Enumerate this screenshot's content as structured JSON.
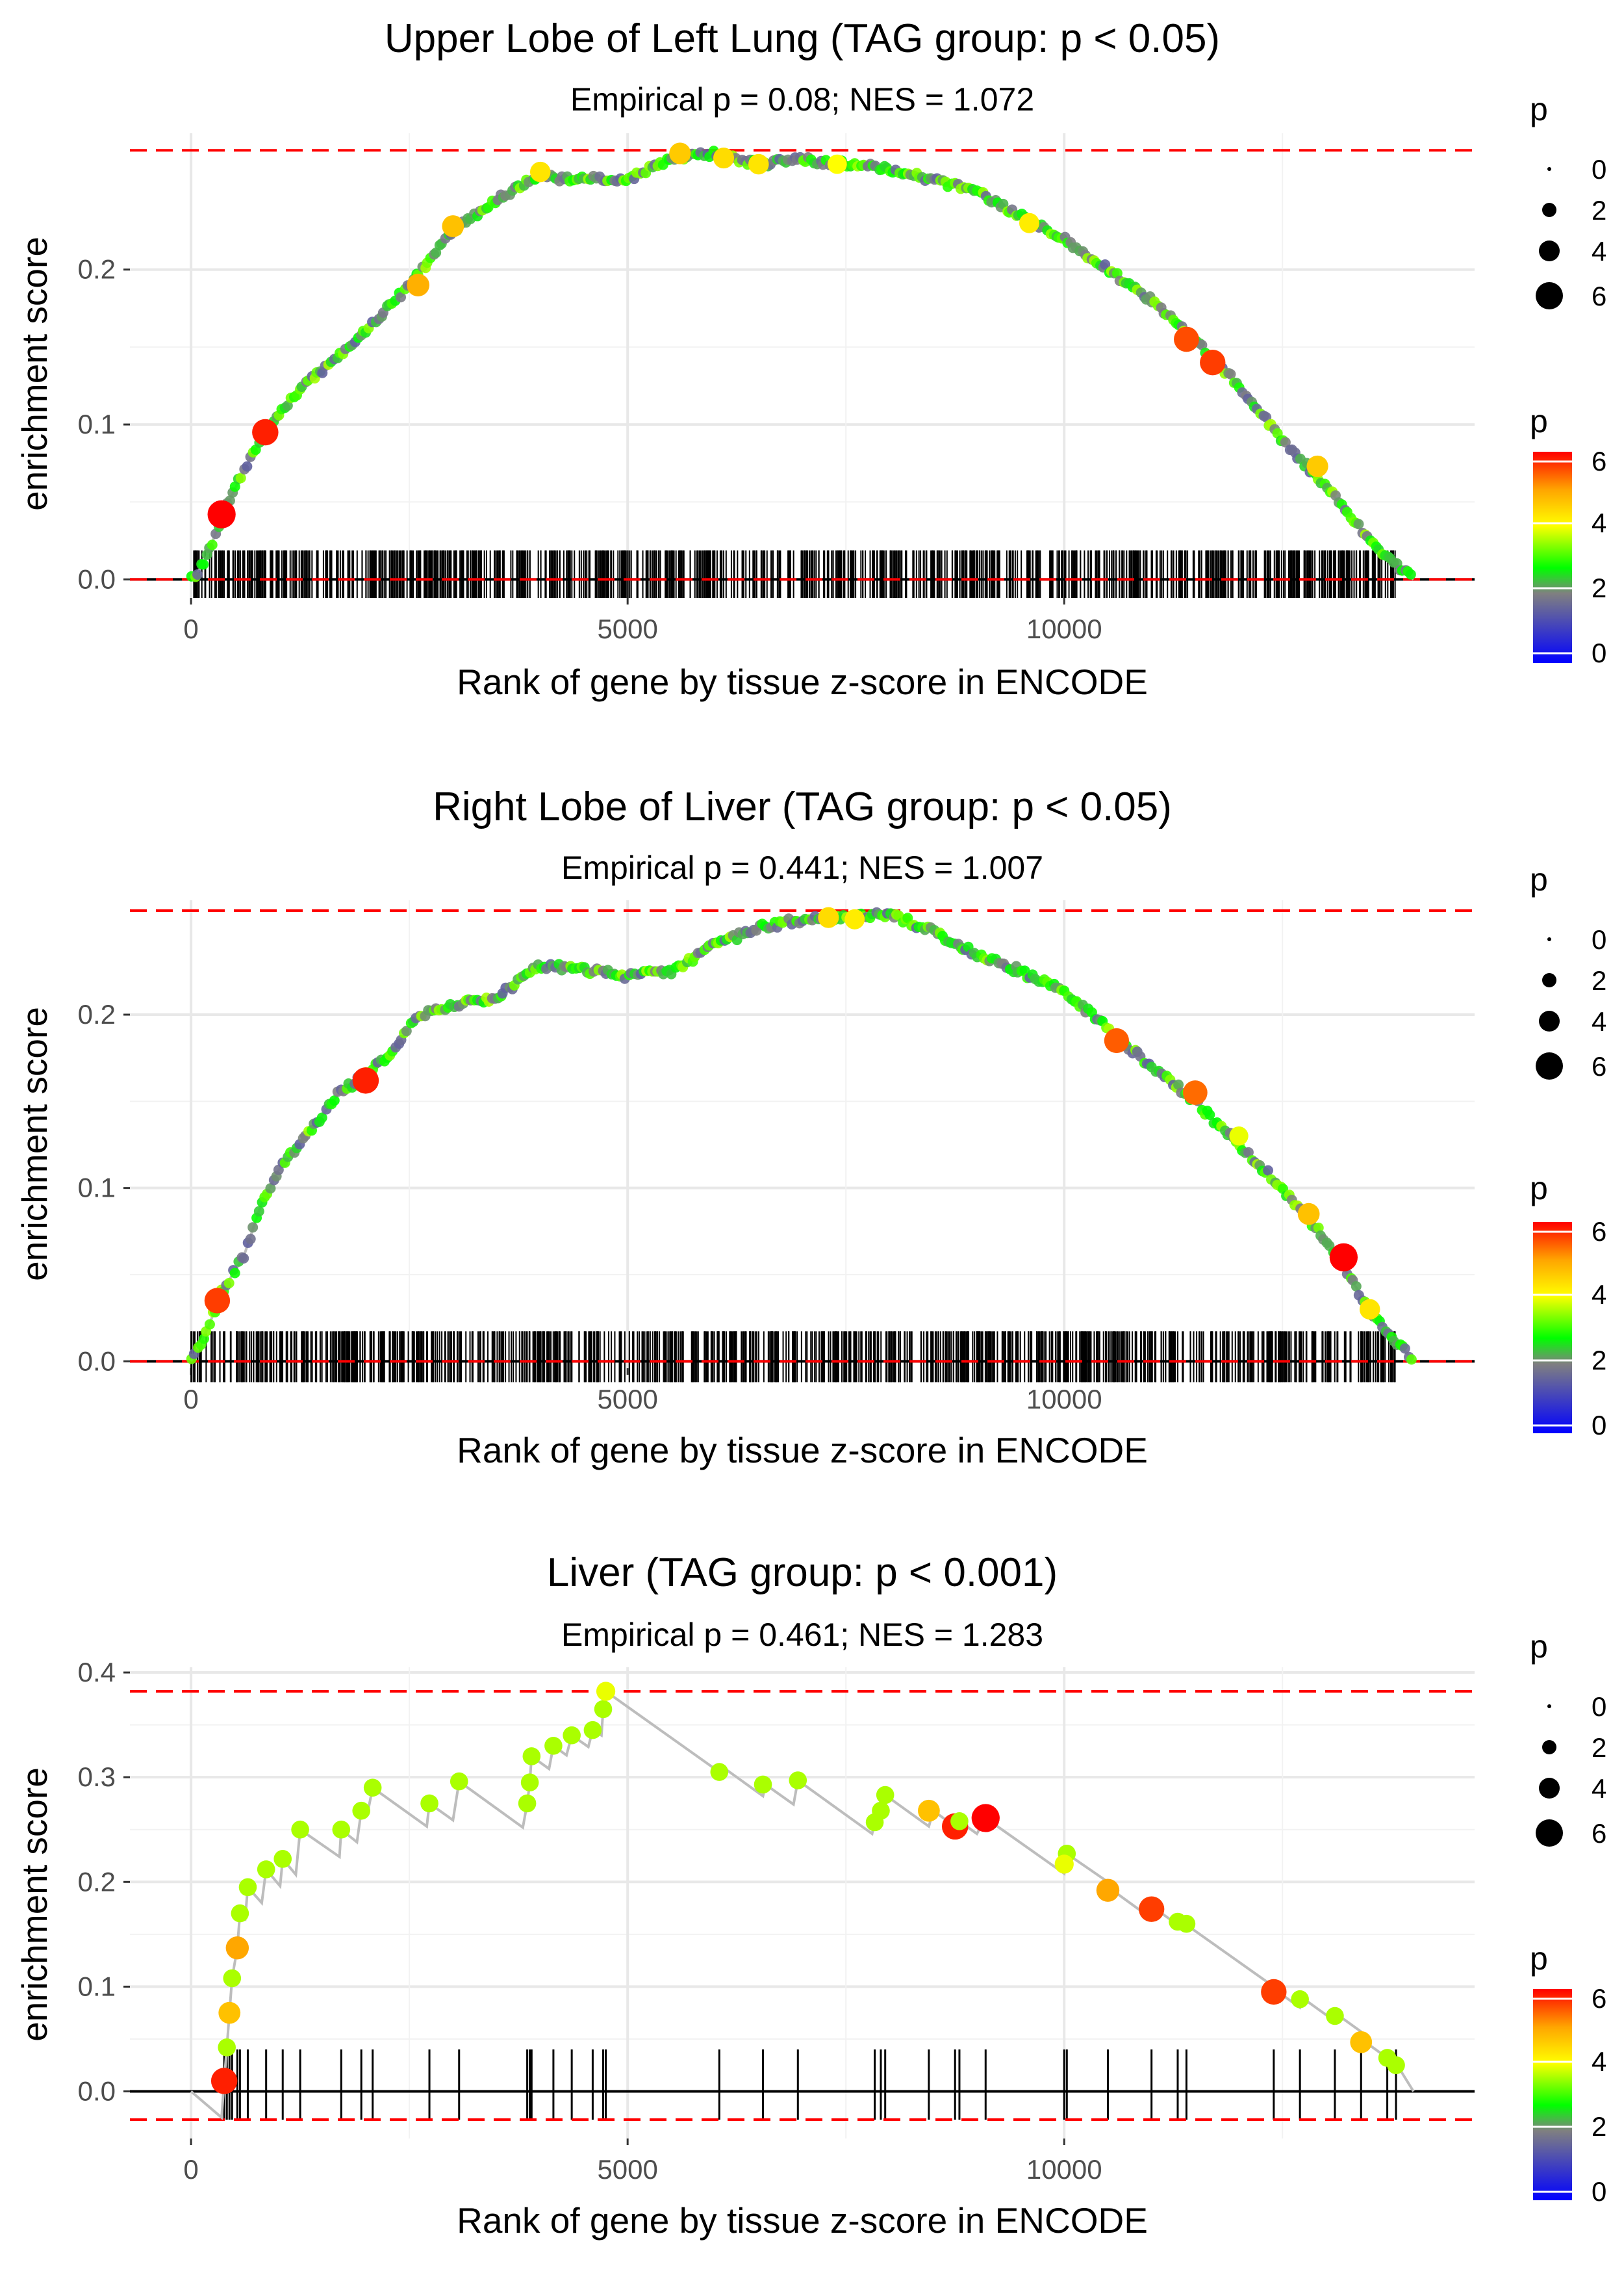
{
  "colors": {
    "dashed": "#ff0000",
    "line": "#bdbdbd",
    "grid": "#e8e8e8",
    "axis_text": "#4d4d4d",
    "gradient": [
      "#0000ff",
      "#808080",
      "#00ff00",
      "#ffff00",
      "#ffa500",
      "#ff0000"
    ]
  },
  "chart_data": [
    {
      "type": "line",
      "title": "Upper Lobe of Left Lung (TAG group: p < 0.05)",
      "subtitle": "Empirical p = 0.08; NES = 1.072",
      "xlabel": "Rank of gene by tissue z-score in ENCODE",
      "ylabel": "enrichment score",
      "xlim": [
        -700,
        14700
      ],
      "ylim": [
        -0.012,
        0.288
      ],
      "x_ticks": [
        0,
        5000,
        10000
      ],
      "x_tick_labels": [
        "0",
        "5000",
        "10000"
      ],
      "y_ticks": [
        0.0,
        0.1,
        0.2
      ],
      "y_tick_labels": [
        "0.0",
        "0.1",
        "0.2"
      ],
      "max_es": 0.277,
      "min_es": 0.0,
      "n_genes": 14000,
      "curve": [
        [
          0,
          0
        ],
        [
          150,
          0.01
        ],
        [
          350,
          0.04
        ],
        [
          600,
          0.07
        ],
        [
          900,
          0.1
        ],
        [
          1200,
          0.12
        ],
        [
          1600,
          0.14
        ],
        [
          2000,
          0.16
        ],
        [
          2500,
          0.19
        ],
        [
          3000,
          0.225
        ],
        [
          3500,
          0.245
        ],
        [
          4000,
          0.262
        ],
        [
          4200,
          0.258
        ],
        [
          4500,
          0.26
        ],
        [
          5000,
          0.258
        ],
        [
          5500,
          0.272
        ],
        [
          6000,
          0.275
        ],
        [
          6500,
          0.268
        ],
        [
          7000,
          0.271
        ],
        [
          7500,
          0.268
        ],
        [
          8000,
          0.265
        ],
        [
          8500,
          0.258
        ],
        [
          9000,
          0.25
        ],
        [
          9500,
          0.235
        ],
        [
          10000,
          0.22
        ],
        [
          10500,
          0.2
        ],
        [
          11000,
          0.18
        ],
        [
          11500,
          0.155
        ],
        [
          12000,
          0.125
        ],
        [
          12500,
          0.09
        ],
        [
          13000,
          0.06
        ],
        [
          13500,
          0.025
        ],
        [
          14000,
          0.0
        ]
      ],
      "highlight_points": [
        [
          350,
          0.042,
          6.3
        ],
        [
          850,
          0.095,
          5.8
        ],
        [
          2600,
          0.19,
          4.8
        ],
        [
          3000,
          0.228,
          4.6
        ],
        [
          4000,
          0.263,
          4.2
        ],
        [
          5600,
          0.275,
          4.5
        ],
        [
          6100,
          0.272,
          4.3
        ],
        [
          6500,
          0.268,
          4.2
        ],
        [
          7400,
          0.268,
          3.9
        ],
        [
          9600,
          0.23,
          4.1
        ],
        [
          11400,
          0.155,
          5.5
        ],
        [
          11700,
          0.14,
          5.6
        ],
        [
          12900,
          0.073,
          4.5
        ]
      ],
      "marker_density": "dense",
      "p_range": [
        0,
        6
      ],
      "legend": {
        "size_title": "p",
        "size_labels": [
          "0",
          "2",
          "4",
          "6"
        ],
        "color_title": "p",
        "color_labels": [
          "6",
          "4",
          "2",
          "0"
        ]
      }
    },
    {
      "type": "line",
      "title": "Right Lobe of Liver (TAG group: p < 0.05)",
      "subtitle": "Empirical p = 0.441; NES = 1.007",
      "xlabel": "Rank of gene by tissue z-score in ENCODE",
      "ylabel": "enrichment score",
      "xlim": [
        -700,
        14700
      ],
      "ylim": [
        -0.004,
        0.266
      ],
      "x_ticks": [
        0,
        5000,
        10000
      ],
      "x_tick_labels": [
        "0",
        "5000",
        "10000"
      ],
      "y_ticks": [
        0.0,
        0.1,
        0.2
      ],
      "y_tick_labels": [
        "0.0",
        "0.1",
        "0.2"
      ],
      "max_es": 0.26,
      "min_es": 0.0,
      "n_genes": 14000,
      "curve": [
        [
          0,
          0
        ],
        [
          200,
          0.02
        ],
        [
          350,
          0.04
        ],
        [
          600,
          0.06
        ],
        [
          800,
          0.09
        ],
        [
          1000,
          0.11
        ],
        [
          1400,
          0.135
        ],
        [
          1700,
          0.155
        ],
        [
          2000,
          0.165
        ],
        [
          2300,
          0.178
        ],
        [
          2600,
          0.2
        ],
        [
          3000,
          0.205
        ],
        [
          3500,
          0.21
        ],
        [
          4000,
          0.228
        ],
        [
          4500,
          0.226
        ],
        [
          5000,
          0.222
        ],
        [
          5500,
          0.225
        ],
        [
          6000,
          0.24
        ],
        [
          6500,
          0.25
        ],
        [
          7000,
          0.255
        ],
        [
          7500,
          0.257
        ],
        [
          8000,
          0.258
        ],
        [
          8500,
          0.248
        ],
        [
          9000,
          0.235
        ],
        [
          9500,
          0.225
        ],
        [
          10000,
          0.213
        ],
        [
          10500,
          0.192
        ],
        [
          11000,
          0.17
        ],
        [
          11500,
          0.15
        ],
        [
          12000,
          0.125
        ],
        [
          12500,
          0.1
        ],
        [
          13000,
          0.07
        ],
        [
          13500,
          0.03
        ],
        [
          14000,
          0.0
        ]
      ],
      "highlight_points": [
        [
          300,
          0.035,
          5.6
        ],
        [
          2000,
          0.162,
          5.8
        ],
        [
          7300,
          0.256,
          4.3
        ],
        [
          7600,
          0.255,
          4.1
        ],
        [
          10600,
          0.185,
          5.4
        ],
        [
          11500,
          0.155,
          5.3
        ],
        [
          12000,
          0.13,
          3.8
        ],
        [
          12800,
          0.085,
          4.6
        ],
        [
          13200,
          0.06,
          6.3
        ],
        [
          13500,
          0.03,
          4.2
        ]
      ],
      "marker_density": "dense",
      "p_range": [
        0,
        6
      ],
      "legend": {
        "size_title": "p",
        "size_labels": [
          "0",
          "2",
          "4",
          "6"
        ],
        "color_title": "p",
        "color_labels": [
          "6",
          "4",
          "2",
          "0"
        ]
      }
    },
    {
      "type": "line",
      "title": "Liver (TAG group: p < 0.001)",
      "subtitle": "Empirical p = 0.461; NES = 1.283",
      "xlabel": "Rank of gene by tissue z-score in ENCODE",
      "ylabel": "enrichment score",
      "xlim": [
        -700,
        14700
      ],
      "ylim": [
        -0.045,
        0.405
      ],
      "x_ticks": [
        0,
        5000,
        10000
      ],
      "x_tick_labels": [
        "0",
        "5000",
        "10000"
      ],
      "y_ticks": [
        0.0,
        0.1,
        0.2,
        0.3,
        0.4
      ],
      "y_tick_labels": [
        "0.0",
        "0.1",
        "0.2",
        "0.3",
        "0.4"
      ],
      "max_es": 0.382,
      "min_es": -0.027,
      "n_genes": 14000,
      "curve": [
        [
          0,
          0
        ],
        [
          350,
          -0.025
        ],
        [
          380,
          0.01
        ],
        [
          410,
          0.042
        ],
        [
          440,
          0.075
        ],
        [
          470,
          0.108
        ],
        [
          530,
          0.137
        ],
        [
          560,
          0.17
        ],
        [
          620,
          0.165
        ],
        [
          650,
          0.195
        ],
        [
          810,
          0.18
        ],
        [
          860,
          0.212
        ],
        [
          1020,
          0.196
        ],
        [
          1050,
          0.222
        ],
        [
          1200,
          0.207
        ],
        [
          1250,
          0.25
        ],
        [
          1700,
          0.224
        ],
        [
          1720,
          0.25
        ],
        [
          1900,
          0.238
        ],
        [
          1950,
          0.268
        ],
        [
          2020,
          0.265
        ],
        [
          2080,
          0.29
        ],
        [
          2700,
          0.253
        ],
        [
          2730,
          0.275
        ],
        [
          3000,
          0.259
        ],
        [
          3070,
          0.296
        ],
        [
          3800,
          0.252
        ],
        [
          3850,
          0.275
        ],
        [
          3880,
          0.295
        ],
        [
          3900,
          0.32
        ],
        [
          4100,
          0.308
        ],
        [
          4150,
          0.33
        ],
        [
          4300,
          0.321
        ],
        [
          4360,
          0.34
        ],
        [
          4550,
          0.329
        ],
        [
          4600,
          0.345
        ],
        [
          4700,
          0.34
        ],
        [
          4720,
          0.365
        ],
        [
          4750,
          0.382
        ],
        [
          6050,
          0.305
        ],
        [
          6100,
          0.309
        ],
        [
          6550,
          0.282
        ],
        [
          6580,
          0.293
        ],
        [
          6900,
          0.274
        ],
        [
          6950,
          0.297
        ],
        [
          7800,
          0.246
        ],
        [
          7830,
          0.257
        ],
        [
          7900,
          0.268
        ],
        [
          7950,
          0.283
        ],
        [
          8450,
          0.253
        ],
        [
          8500,
          0.268
        ],
        [
          8750,
          0.253
        ],
        [
          8800,
          0.258
        ],
        [
          9000,
          0.246
        ],
        [
          9100,
          0.261
        ],
        [
          10000,
          0.208
        ],
        [
          10030,
          0.227
        ],
        [
          10500,
          0.2
        ],
        [
          10570,
          0.191
        ],
        [
          11000,
          0.165
        ],
        [
          11050,
          0.174
        ],
        [
          11300,
          0.159
        ],
        [
          11350,
          0.162
        ],
        [
          12400,
          0.1
        ],
        [
          12450,
          0.095
        ],
        [
          12700,
          0.08
        ],
        [
          12750,
          0.088
        ],
        [
          13100,
          0.067
        ],
        [
          13150,
          0.072
        ],
        [
          13400,
          0.057
        ],
        [
          13450,
          0.047
        ],
        [
          13700,
          0.032
        ],
        [
          13800,
          0.027
        ],
        [
          14000,
          0
        ]
      ],
      "highlight_points": [
        [
          380,
          0.01,
          5.8
        ],
        [
          410,
          0.042,
          3.5
        ],
        [
          440,
          0.075,
          4.6
        ],
        [
          470,
          0.108,
          3.5
        ],
        [
          530,
          0.137,
          4.9
        ],
        [
          560,
          0.17,
          3.5
        ],
        [
          650,
          0.195,
          3.5
        ],
        [
          860,
          0.212,
          3.5
        ],
        [
          1050,
          0.222,
          3.5
        ],
        [
          1250,
          0.25,
          3.5
        ],
        [
          1720,
          0.25,
          3.5
        ],
        [
          1950,
          0.268,
          3.5
        ],
        [
          2080,
          0.29,
          3.5
        ],
        [
          2730,
          0.275,
          3.5
        ],
        [
          3070,
          0.296,
          3.5
        ],
        [
          3850,
          0.275,
          3.5
        ],
        [
          3880,
          0.295,
          3.5
        ],
        [
          3900,
          0.32,
          3.5
        ],
        [
          4150,
          0.33,
          3.5
        ],
        [
          4360,
          0.34,
          3.5
        ],
        [
          4600,
          0.345,
          3.5
        ],
        [
          4720,
          0.365,
          3.5
        ],
        [
          4750,
          0.382,
          3.8
        ],
        [
          6050,
          0.305,
          3.5
        ],
        [
          6550,
          0.293,
          3.5
        ],
        [
          6950,
          0.297,
          3.5
        ],
        [
          7830,
          0.257,
          3.5
        ],
        [
          7900,
          0.268,
          3.5
        ],
        [
          7950,
          0.283,
          3.5
        ],
        [
          8450,
          0.268,
          4.6
        ],
        [
          8750,
          0.253,
          5.8
        ],
        [
          8800,
          0.258,
          3.5
        ],
        [
          9100,
          0.261,
          6.3
        ],
        [
          10030,
          0.227,
          3.5
        ],
        [
          10000,
          0.217,
          3.8
        ],
        [
          10500,
          0.192,
          4.9
        ],
        [
          11000,
          0.174,
          5.6
        ],
        [
          11300,
          0.162,
          3.5
        ],
        [
          11400,
          0.16,
          3.5
        ],
        [
          12400,
          0.095,
          5.6
        ],
        [
          12700,
          0.088,
          3.5
        ],
        [
          13100,
          0.072,
          3.5
        ],
        [
          13400,
          0.047,
          4.6
        ],
        [
          13700,
          0.032,
          3.5
        ],
        [
          13800,
          0.025,
          3.5
        ]
      ],
      "marker_density": "sparse",
      "p_range": [
        0,
        6
      ],
      "legend": {
        "size_title": "p",
        "size_labels": [
          "0",
          "2",
          "4",
          "6"
        ],
        "color_title": "p",
        "color_labels": [
          "6",
          "4",
          "2",
          "0"
        ]
      }
    }
  ]
}
